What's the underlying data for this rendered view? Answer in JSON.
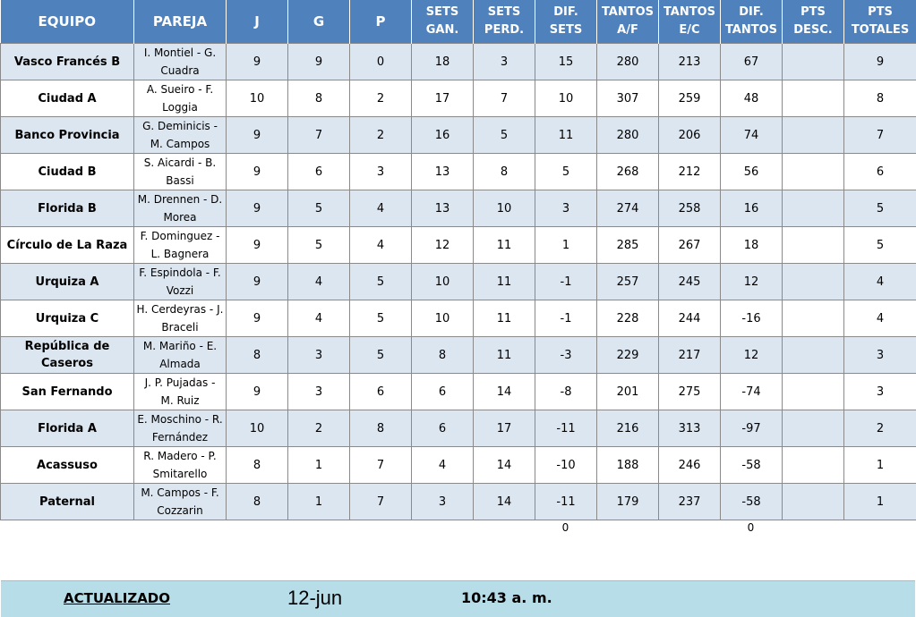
{
  "headers": {
    "equipo": "EQUIPO",
    "pareja": "PAREJA",
    "j": "J",
    "g": "G",
    "p": "P",
    "sets_gan_1": "SETS",
    "sets_gan_2": "GAN.",
    "sets_perd_1": "SETS",
    "sets_perd_2": "PERD.",
    "dif_sets": "DIF. SETS",
    "tantos_af_1": "TANTOS",
    "tantos_af_2": "A/F",
    "tantos_ec_1": "TANTOS",
    "tantos_ec_2": "E/C",
    "dif_tantos_1": "DIF.",
    "dif_tantos_2": "TANTOS",
    "pts_desc_1": "PTS",
    "pts_desc_2": "DESC.",
    "pts_tot_1": "PTS",
    "pts_tot_2": "TOTALES"
  },
  "rows": [
    {
      "equipo": "Vasco Francés B",
      "pareja1": "I. Montiel - G.",
      "pareja2": "Cuadra",
      "j": "9",
      "g": "9",
      "p": "0",
      "sg": "18",
      "sp": "3",
      "ds": "15",
      "taf": "280",
      "tec": "213",
      "dt": "67",
      "pd": "",
      "pt": "9"
    },
    {
      "equipo": "Ciudad A",
      "pareja1": "A. Sueiro - F.",
      "pareja2": "Loggia",
      "j": "10",
      "g": "8",
      "p": "2",
      "sg": "17",
      "sp": "7",
      "ds": "10",
      "taf": "307",
      "tec": "259",
      "dt": "48",
      "pd": "",
      "pt": "8"
    },
    {
      "equipo": "Banco Provincia",
      "pareja1": "G. Deminicis -",
      "pareja2": "M. Campos",
      "j": "9",
      "g": "7",
      "p": "2",
      "sg": "16",
      "sp": "5",
      "ds": "11",
      "taf": "280",
      "tec": "206",
      "dt": "74",
      "pd": "",
      "pt": "7"
    },
    {
      "equipo": "Ciudad B",
      "pareja1": "S. Aicardi - B.",
      "pareja2": "Bassi",
      "j": "9",
      "g": "6",
      "p": "3",
      "sg": "13",
      "sp": "8",
      "ds": "5",
      "taf": "268",
      "tec": "212",
      "dt": "56",
      "pd": "",
      "pt": "6"
    },
    {
      "equipo": "Florida B",
      "pareja1": "M. Drennen - D.",
      "pareja2": "Morea",
      "j": "9",
      "g": "5",
      "p": "4",
      "sg": "13",
      "sp": "10",
      "ds": "3",
      "taf": "274",
      "tec": "258",
      "dt": "16",
      "pd": "",
      "pt": "5"
    },
    {
      "equipo": "Círculo de La Raza",
      "pareja1": "F. Dominguez -",
      "pareja2": "L. Bagnera",
      "j": "9",
      "g": "5",
      "p": "4",
      "sg": "12",
      "sp": "11",
      "ds": "1",
      "taf": "285",
      "tec": "267",
      "dt": "18",
      "pd": "",
      "pt": "5"
    },
    {
      "equipo": "Urquiza A",
      "pareja1": "F. Espindola - F.",
      "pareja2": "Vozzi",
      "j": "9",
      "g": "4",
      "p": "5",
      "sg": "10",
      "sp": "11",
      "ds": "-1",
      "taf": "257",
      "tec": "245",
      "dt": "12",
      "pd": "",
      "pt": "4"
    },
    {
      "equipo": "Urquiza C",
      "pareja1": "H. Cerdeyras - J.",
      "pareja2": "Braceli",
      "j": "9",
      "g": "4",
      "p": "5",
      "sg": "10",
      "sp": "11",
      "ds": "-1",
      "taf": "228",
      "tec": "244",
      "dt": "-16",
      "pd": "",
      "pt": "4"
    },
    {
      "equipo": "República de Caseros",
      "pareja1": "M. Mariño - E.",
      "pareja2": "Almada",
      "j": "8",
      "g": "3",
      "p": "5",
      "sg": "8",
      "sp": "11",
      "ds": "-3",
      "taf": "229",
      "tec": "217",
      "dt": "12",
      "pd": "",
      "pt": "3"
    },
    {
      "equipo": "San Fernando",
      "pareja1": "J. P. Pujadas -",
      "pareja2": "M. Ruiz",
      "j": "9",
      "g": "3",
      "p": "6",
      "sg": "6",
      "sp": "14",
      "ds": "-8",
      "taf": "201",
      "tec": "275",
      "dt": "-74",
      "pd": "",
      "pt": "3"
    },
    {
      "equipo": "Florida A",
      "pareja1": "E. Moschino - R.",
      "pareja2": "Fernández",
      "j": "10",
      "g": "2",
      "p": "8",
      "sg": "6",
      "sp": "17",
      "ds": "-11",
      "taf": "216",
      "tec": "313",
      "dt": "-97",
      "pd": "",
      "pt": "2"
    },
    {
      "equipo": "Acassuso",
      "pareja1": "R. Madero - P.",
      "pareja2": "Smitarello",
      "j": "8",
      "g": "1",
      "p": "7",
      "sg": "4",
      "sp": "14",
      "ds": "-10",
      "taf": "188",
      "tec": "246",
      "dt": "-58",
      "pd": "",
      "pt": "1"
    },
    {
      "equipo": "Paternal",
      "pareja1": "M. Campos - F.",
      "pareja2": "Cozzarin",
      "j": "8",
      "g": "1",
      "p": "7",
      "sg": "3",
      "sp": "14",
      "ds": "-11",
      "taf": "179",
      "tec": "237",
      "dt": "-58",
      "pd": "",
      "pt": "1"
    }
  ],
  "totals": {
    "dif_sets": "0",
    "dif_tantos": "0"
  },
  "footer": {
    "label": "ACTUALIZADO",
    "date": "12-jun",
    "time": "10:43 a. m."
  }
}
